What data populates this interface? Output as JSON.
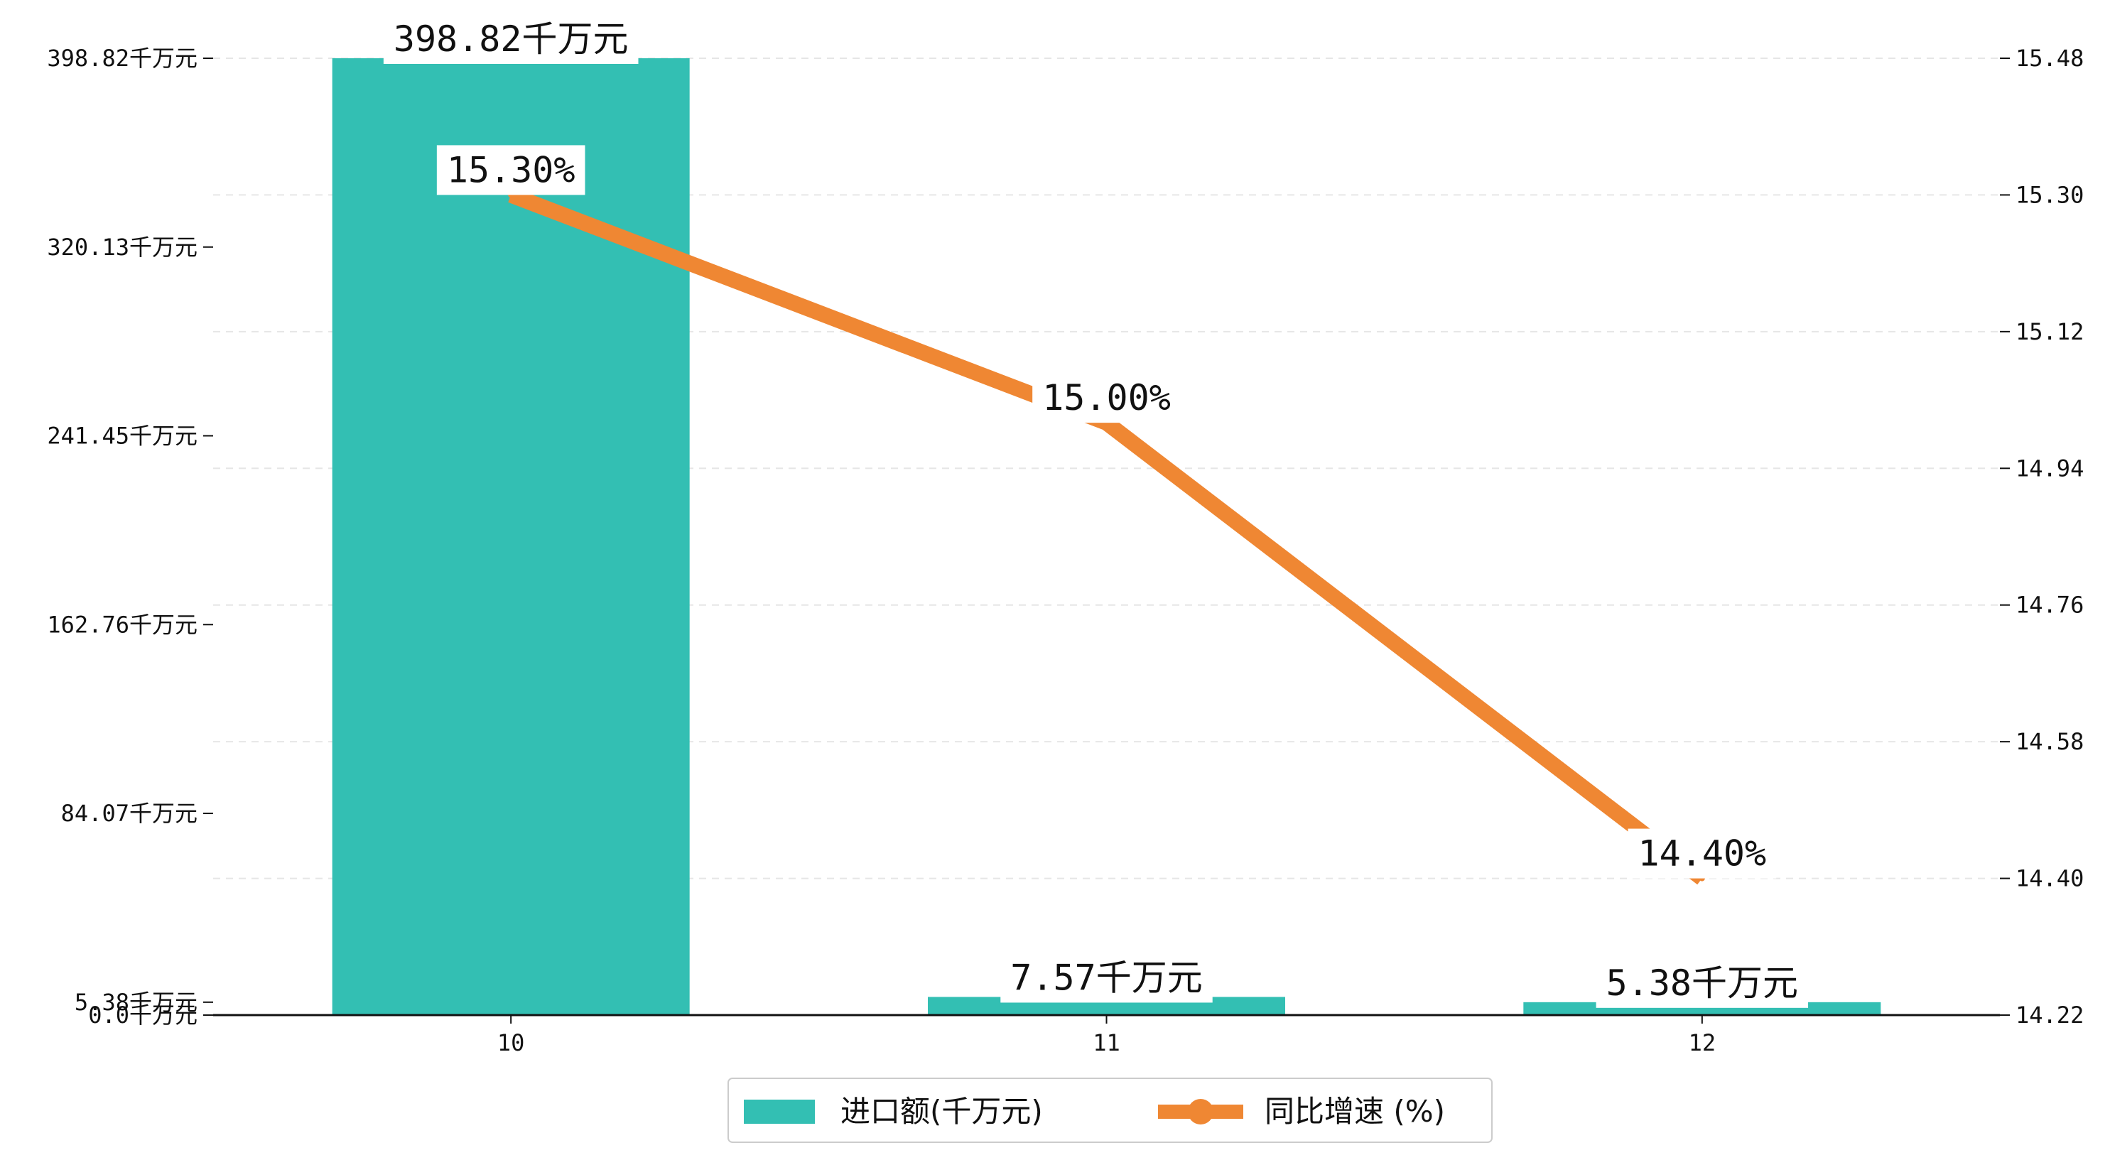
{
  "chart_data": {
    "type": "bar+line",
    "categories": [
      "10",
      "11",
      "12"
    ],
    "series": [
      {
        "name": "进口额(千万元)",
        "type": "bar",
        "axis": "left",
        "values": [
          398.82,
          7.57,
          5.38
        ],
        "labels": [
          "398.82千万元",
          "7.57千万元",
          "5.38千万元"
        ],
        "color": "#33bfb3"
      },
      {
        "name": "同比增速 (%)",
        "type": "line",
        "axis": "right",
        "values": [
          15.3,
          15.0,
          14.4
        ],
        "labels": [
          "15.30%",
          "15.00%",
          "14.40%"
        ],
        "color": "#ef8733"
      }
    ],
    "y_left": {
      "ticks": [
        0.0,
        5.38,
        84.07,
        162.76,
        241.45,
        320.13,
        398.82
      ],
      "tick_labels": [
        "0.0千万元",
        "5.38千万元",
        "84.07千万元",
        "162.76千万元",
        "241.45千万元",
        "320.13千万元",
        "398.82千万元"
      ],
      "range": [
        0,
        398.82
      ]
    },
    "y_right": {
      "ticks": [
        14.22,
        14.4,
        14.58,
        14.76,
        14.94,
        15.12,
        15.3,
        15.48
      ],
      "tick_labels": [
        "14.22",
        "14.40",
        "14.58",
        "14.76",
        "14.94",
        "15.12",
        "15.30",
        "15.48"
      ],
      "range": [
        14.22,
        15.48
      ]
    },
    "grid": true,
    "legend": "bottom-center"
  }
}
